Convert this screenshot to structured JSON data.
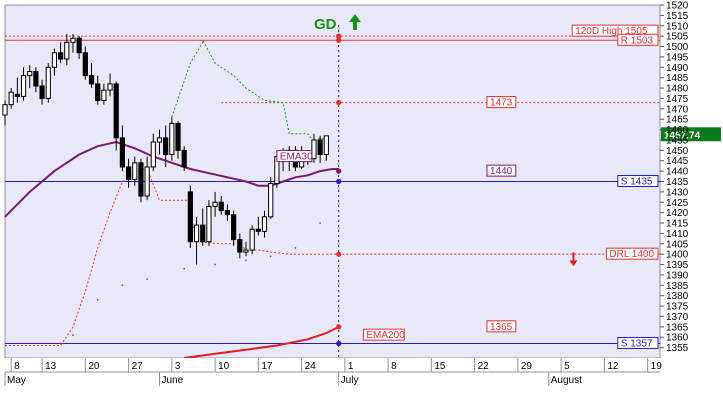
{
  "chart_data": {
    "type": "candlestick",
    "title": "",
    "signal": {
      "text": "GD",
      "arrow": "up",
      "color": "#1a8f1a"
    },
    "ylim": [
      1350,
      1520
    ],
    "y_ticks": [
      1355,
      1360,
      1365,
      1370,
      1375,
      1380,
      1385,
      1390,
      1395,
      1400,
      1405,
      1410,
      1415,
      1420,
      1425,
      1430,
      1435,
      1440,
      1445,
      1450,
      1455,
      1460,
      1465,
      1470,
      1475,
      1480,
      1485,
      1490,
      1495,
      1500,
      1505,
      1510,
      1515,
      1520
    ],
    "x_day_ticks": [
      {
        "day": 0,
        "label": "8"
      },
      {
        "day": 5,
        "label": "13"
      },
      {
        "day": 12,
        "label": "20"
      },
      {
        "day": 19,
        "label": "27"
      },
      {
        "day": 26,
        "label": "3"
      },
      {
        "day": 33,
        "label": "10"
      },
      {
        "day": 40,
        "label": "17"
      },
      {
        "day": 47,
        "label": "24"
      },
      {
        "day": 54,
        "label": "1"
      },
      {
        "day": 61,
        "label": "8"
      },
      {
        "day": 68,
        "label": "15"
      },
      {
        "day": 75,
        "label": "22"
      },
      {
        "day": 82,
        "label": "29"
      },
      {
        "day": 89,
        "label": "5"
      },
      {
        "day": 96,
        "label": "12"
      },
      {
        "day": 103,
        "label": "19"
      }
    ],
    "x_month_labels": [
      {
        "day": -1,
        "label": "May"
      },
      {
        "day": 24,
        "label": "June"
      },
      {
        "day": 53,
        "label": "July"
      },
      {
        "day": 87,
        "label": "August"
      }
    ],
    "x_range_days": [
      -1,
      105
    ],
    "last_price": {
      "value": 1457.74,
      "label": "1457.74"
    },
    "levels": [
      {
        "value": 1505,
        "label": "120D High 1505",
        "color": "#e03030",
        "style": "dotted",
        "from_day": -1
      },
      {
        "value": 1503,
        "label": "R 1503",
        "color": "#e03030",
        "style": "solid",
        "from_day": -1
      },
      {
        "value": 1473,
        "label": "1473",
        "color": "#e03030",
        "style": "dotted",
        "from_day": 34
      },
      {
        "value": 1440,
        "label": "1440",
        "color": "#7a1a6e",
        "style": "none",
        "from_day": 73
      },
      {
        "value": 1435,
        "label": "S 1435",
        "color": "#2020c0",
        "style": "solid",
        "from_day": -1
      },
      {
        "value": 1400,
        "label": "DRL 1400",
        "color": "#e03030",
        "style": "dotted",
        "from_day": 51
      },
      {
        "value": 1365,
        "label": "1365",
        "color": "#e03030",
        "style": "none",
        "from_day": 73
      },
      {
        "value": 1357,
        "label": "S 1357",
        "color": "#2020c0",
        "style": "solid",
        "from_day": -1
      }
    ],
    "red_arrow_down": {
      "day": 91,
      "value": 1397
    },
    "ema_labels": [
      {
        "text": "EMA30",
        "day": 43,
        "value": 1447,
        "color": "#7a1a6e"
      },
      {
        "text": "EMA200",
        "day": 57,
        "value": 1361,
        "color": "#e03030"
      }
    ],
    "candles": [
      {
        "d": -1,
        "o": 1467,
        "h": 1474,
        "l": 1462,
        "c": 1472
      },
      {
        "d": 0,
        "o": 1472,
        "h": 1480,
        "l": 1470,
        "c": 1478
      },
      {
        "d": 1,
        "o": 1477,
        "h": 1485,
        "l": 1473,
        "c": 1476
      },
      {
        "d": 2,
        "o": 1476,
        "h": 1490,
        "l": 1474,
        "c": 1486
      },
      {
        "d": 3,
        "o": 1486,
        "h": 1491,
        "l": 1480,
        "c": 1488
      },
      {
        "d": 4,
        "o": 1488,
        "h": 1490,
        "l": 1478,
        "c": 1481
      },
      {
        "d": 5,
        "o": 1481,
        "h": 1484,
        "l": 1472,
        "c": 1475
      },
      {
        "d": 6,
        "o": 1475,
        "h": 1492,
        "l": 1473,
        "c": 1490
      },
      {
        "d": 7,
        "o": 1490,
        "h": 1499,
        "l": 1486,
        "c": 1497
      },
      {
        "d": 8,
        "o": 1497,
        "h": 1502,
        "l": 1492,
        "c": 1494
      },
      {
        "d": 9,
        "o": 1494,
        "h": 1506,
        "l": 1491,
        "c": 1502
      },
      {
        "d": 10,
        "o": 1502,
        "h": 1506,
        "l": 1497,
        "c": 1504
      },
      {
        "d": 11,
        "o": 1504,
        "h": 1505,
        "l": 1494,
        "c": 1497
      },
      {
        "d": 12,
        "o": 1497,
        "h": 1500,
        "l": 1484,
        "c": 1486
      },
      {
        "d": 13,
        "o": 1486,
        "h": 1492,
        "l": 1480,
        "c": 1482
      },
      {
        "d": 14,
        "o": 1482,
        "h": 1486,
        "l": 1472,
        "c": 1474
      },
      {
        "d": 15,
        "o": 1474,
        "h": 1482,
        "l": 1472,
        "c": 1479
      },
      {
        "d": 16,
        "o": 1479,
        "h": 1487,
        "l": 1476,
        "c": 1482
      },
      {
        "d": 17,
        "o": 1482,
        "h": 1483,
        "l": 1450,
        "c": 1456
      },
      {
        "d": 18,
        "o": 1456,
        "h": 1462,
        "l": 1440,
        "c": 1442
      },
      {
        "d": 19,
        "o": 1442,
        "h": 1446,
        "l": 1432,
        "c": 1436
      },
      {
        "d": 20,
        "o": 1436,
        "h": 1447,
        "l": 1433,
        "c": 1444
      },
      {
        "d": 21,
        "o": 1444,
        "h": 1446,
        "l": 1425,
        "c": 1428
      },
      {
        "d": 22,
        "o": 1428,
        "h": 1447,
        "l": 1426,
        "c": 1442
      },
      {
        "d": 23,
        "o": 1442,
        "h": 1458,
        "l": 1440,
        "c": 1454
      },
      {
        "d": 24,
        "o": 1454,
        "h": 1460,
        "l": 1448,
        "c": 1456
      },
      {
        "d": 25,
        "o": 1456,
        "h": 1462,
        "l": 1442,
        "c": 1448
      },
      {
        "d": 26,
        "o": 1448,
        "h": 1466,
        "l": 1445,
        "c": 1463
      },
      {
        "d": 27,
        "o": 1463,
        "h": 1464,
        "l": 1446,
        "c": 1450
      },
      {
        "d": 28,
        "o": 1450,
        "h": 1452,
        "l": 1440,
        "c": 1442
      },
      {
        "d": 29,
        "o": 1430,
        "h": 1433,
        "l": 1403,
        "c": 1406
      },
      {
        "d": 30,
        "o": 1406,
        "h": 1418,
        "l": 1395,
        "c": 1414
      },
      {
        "d": 31,
        "o": 1414,
        "h": 1422,
        "l": 1404,
        "c": 1406
      },
      {
        "d": 32,
        "o": 1406,
        "h": 1426,
        "l": 1404,
        "c": 1423
      },
      {
        "d": 33,
        "o": 1423,
        "h": 1430,
        "l": 1418,
        "c": 1425
      },
      {
        "d": 34,
        "o": 1425,
        "h": 1428,
        "l": 1419,
        "c": 1421
      },
      {
        "d": 35,
        "o": 1421,
        "h": 1424,
        "l": 1416,
        "c": 1419
      },
      {
        "d": 36,
        "o": 1419,
        "h": 1421,
        "l": 1404,
        "c": 1407
      },
      {
        "d": 37,
        "o": 1407,
        "h": 1410,
        "l": 1398,
        "c": 1401
      },
      {
        "d": 38,
        "o": 1401,
        "h": 1406,
        "l": 1399,
        "c": 1402
      },
      {
        "d": 39,
        "o": 1402,
        "h": 1414,
        "l": 1400,
        "c": 1412
      },
      {
        "d": 40,
        "o": 1412,
        "h": 1418,
        "l": 1409,
        "c": 1411
      },
      {
        "d": 41,
        "o": 1411,
        "h": 1421,
        "l": 1408,
        "c": 1418
      },
      {
        "d": 42,
        "o": 1418,
        "h": 1437,
        "l": 1417,
        "c": 1434
      },
      {
        "d": 43,
        "o": 1434,
        "h": 1450,
        "l": 1432,
        "c": 1447
      },
      {
        "d": 44,
        "o": 1447,
        "h": 1451,
        "l": 1440,
        "c": 1445
      },
      {
        "d": 45,
        "o": 1445,
        "h": 1452,
        "l": 1440,
        "c": 1450
      },
      {
        "d": 46,
        "o": 1450,
        "h": 1452,
        "l": 1440,
        "c": 1442
      },
      {
        "d": 47,
        "o": 1442,
        "h": 1452,
        "l": 1441,
        "c": 1449
      },
      {
        "d": 48,
        "o": 1449,
        "h": 1450,
        "l": 1443,
        "c": 1446
      },
      {
        "d": 49,
        "o": 1446,
        "h": 1458,
        "l": 1444,
        "c": 1455
      },
      {
        "d": 50,
        "o": 1455,
        "h": 1457,
        "l": 1444,
        "c": 1448
      },
      {
        "d": 51,
        "o": 1448,
        "h": 1456,
        "l": 1445,
        "c": 1457
      }
    ],
    "ema30": [
      [
        -1,
        1418
      ],
      [
        3,
        1430
      ],
      [
        7,
        1440
      ],
      [
        11,
        1448
      ],
      [
        14,
        1452
      ],
      [
        17,
        1454
      ],
      [
        20,
        1451
      ],
      [
        23,
        1447
      ],
      [
        26,
        1444
      ],
      [
        29,
        1441
      ],
      [
        32,
        1439
      ],
      [
        35,
        1437
      ],
      [
        38,
        1435
      ],
      [
        40,
        1433
      ],
      [
        42,
        1433
      ],
      [
        44,
        1435
      ],
      [
        46,
        1437
      ],
      [
        48,
        1438
      ],
      [
        50,
        1440
      ],
      [
        52,
        1441
      ],
      [
        53,
        1441
      ]
    ],
    "ema200": [
      [
        28,
        1350
      ],
      [
        33,
        1352
      ],
      [
        38,
        1354
      ],
      [
        43,
        1356
      ],
      [
        48,
        1359
      ],
      [
        51,
        1362
      ],
      [
        53,
        1365
      ]
    ],
    "red_trail": [
      [
        -1,
        1356
      ],
      [
        8,
        1356
      ],
      [
        10,
        1365
      ],
      [
        12,
        1382
      ],
      [
        14,
        1403
      ],
      [
        16,
        1420
      ],
      [
        18,
        1435
      ],
      [
        19,
        1436
      ],
      [
        20,
        1440
      ],
      [
        22,
        1441
      ],
      [
        24,
        1426
      ],
      [
        27,
        1426
      ],
      [
        29,
        1426
      ],
      [
        29,
        1420
      ],
      [
        30,
        1406
      ],
      [
        34,
        1405
      ],
      [
        37,
        1405
      ],
      [
        38,
        1402
      ],
      [
        40,
        1402
      ],
      [
        42,
        1401
      ],
      [
        45,
        1400
      ],
      [
        48,
        1400
      ],
      [
        51,
        1400
      ]
    ],
    "green_trail": [
      [
        26,
        1466
      ],
      [
        29,
        1492
      ],
      [
        31,
        1502
      ],
      [
        31,
        1503
      ],
      [
        33,
        1492
      ],
      [
        36,
        1486
      ],
      [
        38,
        1480
      ],
      [
        41,
        1474
      ],
      [
        44,
        1473
      ],
      [
        45,
        1458
      ],
      [
        48,
        1458
      ],
      [
        49,
        1454
      ],
      [
        50,
        1456
      ],
      [
        51,
        1455
      ]
    ],
    "gray_dots": [
      [
        10,
        1361
      ],
      [
        14,
        1378
      ],
      [
        18,
        1385
      ],
      [
        22,
        1388
      ],
      [
        28,
        1393
      ],
      [
        33,
        1395
      ],
      [
        38,
        1397
      ],
      [
        42,
        1399
      ],
      [
        46,
        1403
      ],
      [
        50,
        1415
      ]
    ]
  }
}
